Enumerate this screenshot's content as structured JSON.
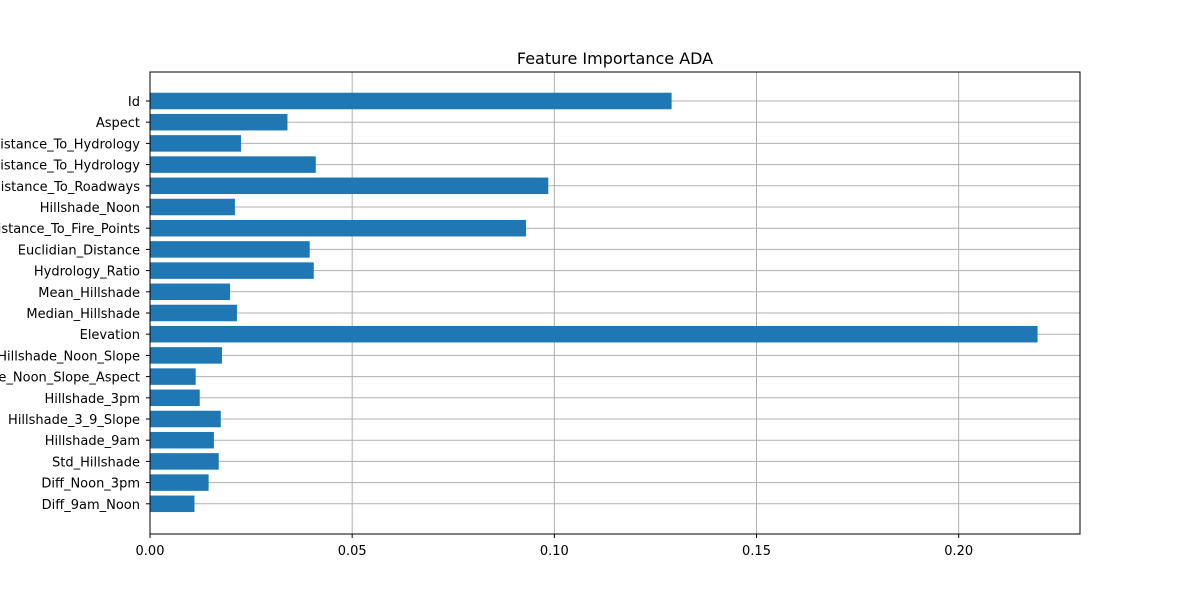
{
  "chart_data": {
    "type": "bar",
    "orientation": "horizontal",
    "title": "Feature Importance ADA",
    "xlabel": "",
    "ylabel": "",
    "xlim": [
      0,
      0.23
    ],
    "xticks": [
      0.0,
      0.05,
      0.1,
      0.15,
      0.2
    ],
    "xtick_labels": [
      "0.00",
      "0.05",
      "0.10",
      "0.15",
      "0.20"
    ],
    "grid": true,
    "bar_color": "#1f77b4",
    "grid_color": "#b0b0b0",
    "categories": [
      "Id",
      "Aspect",
      "Horizontal_Distance_To_Hydrology",
      "Vertical_Distance_To_Hydrology",
      "Horizontal_Distance_To_Roadways",
      "Hillshade_Noon",
      "Horizontal_Distance_To_Fire_Points",
      "Euclidian_Distance",
      "Hydrology_Ratio",
      "Mean_Hillshade",
      "Median_Hillshade",
      "Elevation",
      "Hillshade_Noon_Slope",
      "Hillshade_Noon_Slope_Aspect",
      "Hillshade_3pm",
      "Hillshade_3_9_Slope",
      "Hillshade_9am",
      "Std_Hillshade",
      "Diff_Noon_3pm",
      "Diff_9am_Noon"
    ],
    "values": [
      0.129,
      0.034,
      0.0225,
      0.041,
      0.0985,
      0.021,
      0.093,
      0.0395,
      0.0405,
      0.0198,
      0.0215,
      0.2195,
      0.0178,
      0.0113,
      0.0123,
      0.0175,
      0.0158,
      0.017,
      0.0145,
      0.011
    ]
  }
}
